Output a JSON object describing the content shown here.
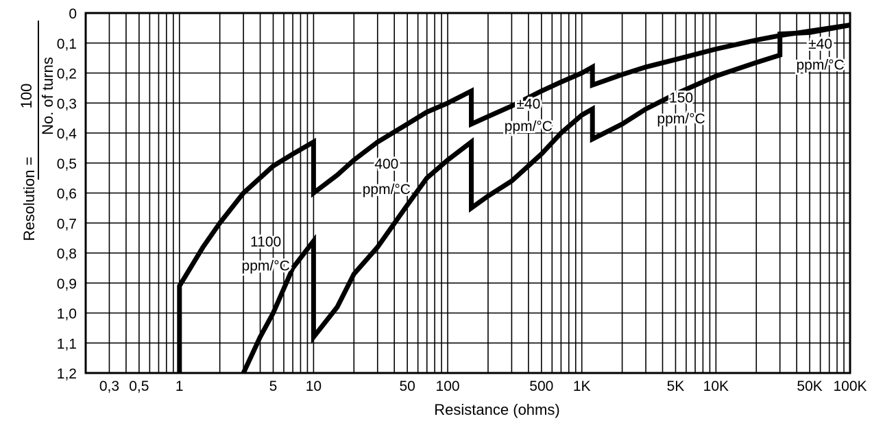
{
  "chart_data": {
    "type": "line",
    "title": "",
    "xlabel": "Resistance (ohms)",
    "ylabel": "Resolution =",
    "ylabel_fraction": {
      "numerator": "100",
      "denominator": "No. of turns"
    },
    "x_scale": "log",
    "xlim": [
      0.2,
      100000
    ],
    "ylim": [
      0,
      1.2
    ],
    "y_inverted": true,
    "grid": true,
    "x_ticks": [
      {
        "value": 0.3,
        "label": "0,3"
      },
      {
        "value": 0.5,
        "label": "0,5"
      },
      {
        "value": 1,
        "label": "1"
      },
      {
        "value": 5,
        "label": "5"
      },
      {
        "value": 10,
        "label": "10"
      },
      {
        "value": 50,
        "label": "50"
      },
      {
        "value": 100,
        "label": "100"
      },
      {
        "value": 500,
        "label": "500"
      },
      {
        "value": 1000,
        "label": "1K"
      },
      {
        "value": 5000,
        "label": "5K"
      },
      {
        "value": 10000,
        "label": "10K"
      },
      {
        "value": 50000,
        "label": "50K"
      },
      {
        "value": 100000,
        "label": "100K"
      }
    ],
    "y_ticks": [
      {
        "value": 0,
        "label": "0"
      },
      {
        "value": 0.1,
        "label": "0,1"
      },
      {
        "value": 0.2,
        "label": "0,2"
      },
      {
        "value": 0.3,
        "label": "0,3"
      },
      {
        "value": 0.4,
        "label": "0,4"
      },
      {
        "value": 0.5,
        "label": "0,5"
      },
      {
        "value": 0.6,
        "label": "0,6"
      },
      {
        "value": 0.7,
        "label": "0,7"
      },
      {
        "value": 0.8,
        "label": "0,8"
      },
      {
        "value": 0.9,
        "label": "0,9"
      },
      {
        "value": 1.0,
        "label": "1,0"
      },
      {
        "value": 1.1,
        "label": "1,1"
      },
      {
        "value": 1.2,
        "label": "1,2"
      }
    ],
    "x_grid_values": [
      0.2,
      0.3,
      0.4,
      0.5,
      0.6,
      0.7,
      0.8,
      0.9,
      1,
      2,
      3,
      4,
      5,
      6,
      7,
      8,
      9,
      10,
      20,
      30,
      40,
      50,
      60,
      70,
      80,
      90,
      100,
      200,
      300,
      400,
      500,
      600,
      700,
      800,
      900,
      1000,
      2000,
      3000,
      4000,
      5000,
      6000,
      7000,
      8000,
      9000,
      10000,
      20000,
      30000,
      40000,
      50000,
      60000,
      70000,
      80000,
      90000,
      100000
    ],
    "series": [
      {
        "points": [
          [
            1,
            1.2
          ],
          [
            1,
            0.91
          ],
          [
            1.5,
            0.78
          ],
          [
            2,
            0.7
          ],
          [
            3,
            0.6
          ],
          [
            5,
            0.51
          ],
          [
            7,
            0.47
          ],
          [
            10,
            0.43
          ],
          [
            10,
            0.6
          ],
          [
            15,
            0.54
          ],
          [
            20,
            0.49
          ],
          [
            30,
            0.43
          ],
          [
            50,
            0.37
          ],
          [
            70,
            0.33
          ],
          [
            100,
            0.3
          ],
          [
            150,
            0.26
          ],
          [
            150,
            0.37
          ],
          [
            200,
            0.345
          ],
          [
            300,
            0.31
          ],
          [
            500,
            0.26
          ],
          [
            700,
            0.23
          ],
          [
            1000,
            0.2
          ],
          [
            1200,
            0.18
          ],
          [
            1200,
            0.24
          ],
          [
            2000,
            0.205
          ],
          [
            3000,
            0.18
          ],
          [
            5000,
            0.155
          ],
          [
            10000,
            0.12
          ],
          [
            20000,
            0.09
          ],
          [
            30000,
            0.075
          ],
          [
            50000,
            0.06
          ],
          [
            100000,
            0.04
          ]
        ]
      },
      {
        "points": [
          [
            3,
            1.2
          ],
          [
            4,
            1.08
          ],
          [
            5,
            1.0
          ],
          [
            7,
            0.85
          ],
          [
            10,
            0.76
          ],
          [
            10,
            1.08
          ],
          [
            15,
            0.98
          ],
          [
            20,
            0.87
          ],
          [
            30,
            0.78
          ],
          [
            50,
            0.64
          ],
          [
            70,
            0.55
          ],
          [
            100,
            0.49
          ],
          [
            150,
            0.43
          ],
          [
            150,
            0.65
          ],
          [
            200,
            0.61
          ],
          [
            300,
            0.56
          ],
          [
            500,
            0.47
          ],
          [
            700,
            0.4
          ],
          [
            1000,
            0.34
          ],
          [
            1200,
            0.32
          ],
          [
            1200,
            0.42
          ],
          [
            2000,
            0.37
          ],
          [
            3000,
            0.32
          ],
          [
            5000,
            0.27
          ],
          [
            10000,
            0.21
          ],
          [
            20000,
            0.165
          ],
          [
            30000,
            0.14
          ],
          [
            30000,
            0.07
          ],
          [
            50000,
            0.065
          ],
          [
            100000,
            0.04
          ]
        ]
      }
    ],
    "annotations": [
      {
        "lines": [
          "1100",
          "ppm/°C"
        ],
        "x": 4.4,
        "y": [
          0.76,
          0.84
        ]
      },
      {
        "lines": [
          "400",
          "ppm/°C"
        ],
        "x": 35,
        "y": [
          0.5,
          0.585
        ]
      },
      {
        "lines": [
          "±40",
          "ppm/°C"
        ],
        "x": 400,
        "y": [
          0.3,
          0.375
        ]
      },
      {
        "lines": [
          "150",
          "ppm/°C"
        ],
        "x": 5500,
        "y": [
          0.28,
          0.35
        ]
      },
      {
        "lines": [
          "±40",
          "ppm/°C"
        ],
        "x": 60000,
        "y": [
          0.1,
          0.17
        ]
      }
    ]
  }
}
